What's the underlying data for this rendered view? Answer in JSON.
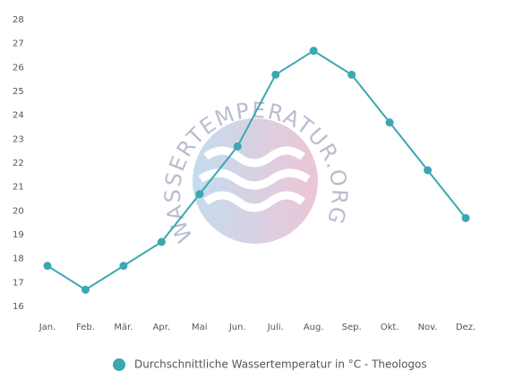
{
  "chart_data": {
    "type": "line",
    "categories": [
      "Jan.",
      "Feb.",
      "Mär.",
      "Apr.",
      "Mai",
      "Jun.",
      "Juli.",
      "Aug.",
      "Sep.",
      "Okt.",
      "Nov.",
      "Dez."
    ],
    "series": [
      {
        "name": "Durchschnittliche Wassertemperatur in °C - Theologos",
        "color": "#3ba7b1",
        "values": [
          17.7,
          16.7,
          17.7,
          18.7,
          20.7,
          22.7,
          25.7,
          26.7,
          25.7,
          23.7,
          21.7,
          19.7
        ]
      }
    ],
    "ylim": [
      16,
      28
    ],
    "yticks": [
      16,
      17,
      18,
      19,
      20,
      21,
      22,
      23,
      24,
      25,
      26,
      27,
      28
    ],
    "grid": false,
    "legend": "bottom",
    "watermark": "WASSERTEMPERATUR.ORG"
  }
}
